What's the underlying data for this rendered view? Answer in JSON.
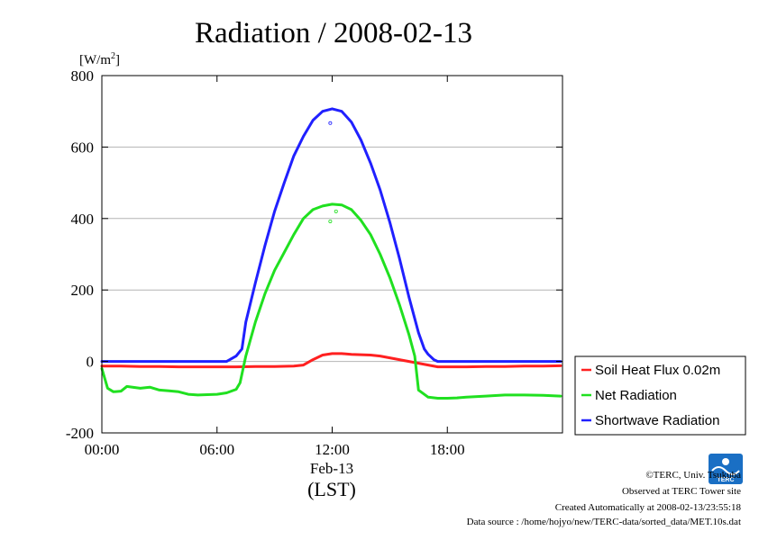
{
  "chart_data": {
    "type": "line",
    "title": "Radiation / 2008-02-13",
    "ylabel": "[W/m2]",
    "ylabel_base": "[W/m",
    "ylabel_sup": "2",
    "ylabel_close": "]",
    "xlabel_date": "Feb-13",
    "xlabel_tz": "(LST)",
    "ylim": [
      -200,
      800
    ],
    "xlim": [
      0,
      24
    ],
    "yticks": [
      {
        "value": -200,
        "label": "-200"
      },
      {
        "value": 0,
        "label": "0"
      },
      {
        "value": 200,
        "label": "200"
      },
      {
        "value": 400,
        "label": "400"
      },
      {
        "value": 600,
        "label": "600"
      },
      {
        "value": 800,
        "label": "800"
      }
    ],
    "xticks": [
      {
        "value": 0,
        "label": "00:00"
      },
      {
        "value": 6,
        "label": "06:00"
      },
      {
        "value": 12,
        "label": "12:00"
      },
      {
        "value": 18,
        "label": "18:00"
      }
    ],
    "grid": "horizontal",
    "legend_position": "right",
    "series": [
      {
        "name": "Soil Heat Flux 0.02m",
        "color": "#ff2020",
        "x": [
          0,
          1,
          2,
          3,
          4,
          5,
          6,
          7,
          8,
          9,
          10,
          10.5,
          11,
          11.5,
          12,
          12.5,
          13,
          13.5,
          14,
          14.5,
          15,
          15.5,
          16,
          16.5,
          17,
          17.5,
          18,
          19,
          20,
          21,
          22,
          23,
          23.9
        ],
        "values": [
          -13,
          -13,
          -14,
          -14,
          -15,
          -15,
          -15,
          -15,
          -14,
          -14,
          -13,
          -10,
          5,
          18,
          22,
          22,
          20,
          19,
          18,
          15,
          10,
          5,
          0,
          -5,
          -10,
          -15,
          -15,
          -15,
          -14,
          -14,
          -13,
          -13,
          -12
        ]
      },
      {
        "name": "Net Radiation",
        "color": "#20e020",
        "x": [
          0,
          0.3,
          0.6,
          1,
          1.3,
          1.6,
          2,
          2.5,
          3,
          3.5,
          4,
          4.5,
          5,
          5.5,
          6,
          6.5,
          7,
          7.2,
          7.5,
          8,
          8.5,
          9,
          9.5,
          10,
          10.5,
          11,
          11.5,
          12,
          12.5,
          13,
          13.5,
          14,
          14.5,
          15,
          15.5,
          16,
          16.3,
          16.5,
          17,
          17.5,
          18,
          18.5,
          19,
          20,
          21,
          22,
          23,
          23.9
        ],
        "values": [
          -20,
          -75,
          -85,
          -83,
          -70,
          -72,
          -75,
          -72,
          -80,
          -82,
          -85,
          -92,
          -94,
          -93,
          -92,
          -88,
          -78,
          -60,
          15,
          110,
          190,
          255,
          305,
          355,
          400,
          425,
          435,
          440,
          438,
          425,
          395,
          355,
          300,
          235,
          160,
          75,
          15,
          -80,
          -100,
          -103,
          -103,
          -102,
          -100,
          -97,
          -94,
          -94,
          -95,
          -97
        ]
      },
      {
        "name": "Shortwave Radiation",
        "color": "#2020ff",
        "x": [
          0,
          1,
          2,
          3,
          4,
          5,
          6,
          6.5,
          7,
          7.3,
          7.5,
          8,
          8.5,
          9,
          9.5,
          10,
          10.5,
          11,
          11.5,
          12,
          12.5,
          13,
          13.5,
          14,
          14.5,
          15,
          15.5,
          16,
          16.5,
          16.8,
          17,
          17.3,
          17.5,
          18,
          19,
          20,
          21,
          22,
          23,
          23.9
        ],
        "values": [
          0,
          0,
          0,
          0,
          0,
          0,
          0,
          0,
          15,
          35,
          110,
          220,
          325,
          420,
          500,
          575,
          630,
          675,
          700,
          707,
          700,
          670,
          620,
          555,
          480,
          390,
          290,
          180,
          80,
          35,
          20,
          5,
          0,
          0,
          0,
          0,
          0,
          0,
          0,
          0
        ]
      }
    ],
    "outliers": [
      {
        "series": "Shortwave Radiation",
        "x": 11.9,
        "y": 667
      },
      {
        "series": "Net Radiation",
        "x": 11.9,
        "y": 392
      },
      {
        "series": "Net Radiation",
        "x": 12.2,
        "y": 420
      }
    ]
  },
  "credits": {
    "org": "©TERC, Univ. Tsukuba",
    "site": "Observed at TERC Tower site",
    "created": "Created Automatically at 2008-02-13/23:55:18",
    "source": "Data source : /home/hojyo/new/TERC-data/sorted_data/MET.10s.dat",
    "logo_text": "TERC"
  },
  "colors": {
    "grid": "#b4b4b4",
    "logo": "#1a6fc4"
  }
}
